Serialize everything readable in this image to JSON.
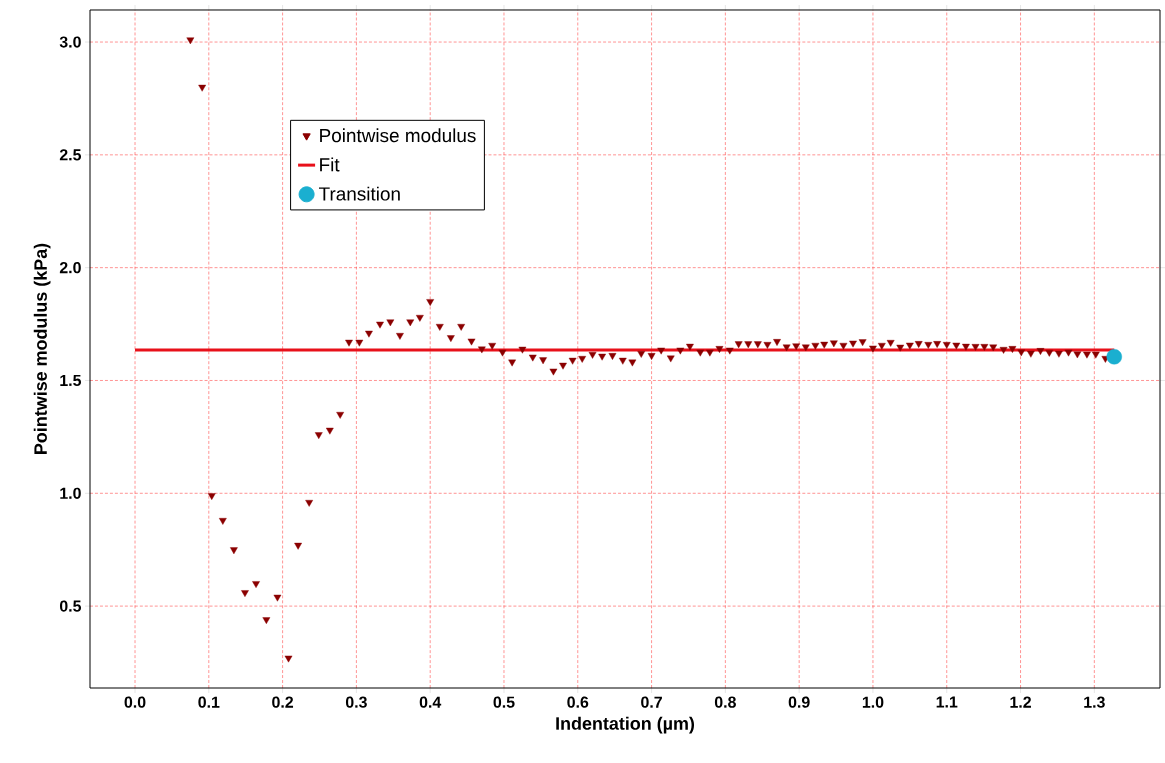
{
  "chart_data": {
    "type": "scatter",
    "xlabel": "Indentation (µm)",
    "ylabel": "Pointwise modulus (kPa)",
    "xlim": [
      -0.061,
      1.389
    ],
    "ylim": [
      0.137,
      3.142
    ],
    "xticks": [
      {
        "value": 0.0,
        "label": "0.0"
      },
      0.1,
      0.2,
      0.3,
      0.4,
      0.5,
      0.6,
      0.7,
      0.8,
      0.9,
      {
        "value": 1.0,
        "label": "1.0"
      },
      1.1,
      1.2,
      1.3
    ],
    "yticks": [
      0.5,
      {
        "value": 1.0,
        "label": "1.0"
      },
      1.5,
      {
        "value": 2.0,
        "label": "2.0"
      },
      2.5,
      {
        "value": 3.0,
        "label": "3.0"
      }
    ],
    "grid": true,
    "legend": "top left",
    "series": [
      {
        "name": "Pointwise modulus",
        "marker": "triangle",
        "color": "#8b0000",
        "x": [
          0.075,
          0.091,
          0.104,
          0.119,
          0.134,
          0.149,
          0.164,
          0.178,
          0.193,
          0.208,
          0.221,
          0.236,
          0.249,
          0.264,
          0.278,
          0.29,
          0.304,
          0.317,
          0.332,
          0.346,
          0.359,
          0.373,
          0.386,
          0.4,
          0.413,
          0.428,
          0.442,
          0.456,
          0.47,
          0.484,
          0.498,
          0.511,
          0.525,
          0.539,
          0.553,
          0.567,
          0.58,
          0.593,
          0.606,
          0.62,
          0.633,
          0.647,
          0.661,
          0.674,
          0.686,
          0.7,
          0.713,
          0.726,
          0.739,
          0.752,
          0.766,
          0.779,
          0.792,
          0.806,
          0.818,
          0.831,
          0.844,
          0.857,
          0.87,
          0.883,
          0.896,
          0.909,
          0.922,
          0.934,
          0.947,
          0.96,
          0.973,
          0.986,
          1.0,
          1.012,
          1.024,
          1.037,
          1.05,
          1.062,
          1.075,
          1.087,
          1.1,
          1.113,
          1.126,
          1.139,
          1.151,
          1.163,
          1.177,
          1.189,
          1.201,
          1.214,
          1.227,
          1.239,
          1.252,
          1.265,
          1.277,
          1.29,
          1.302,
          1.315
        ],
        "values": [
          3.01,
          2.8,
          0.99,
          0.88,
          0.75,
          0.56,
          0.6,
          0.44,
          0.54,
          0.27,
          0.77,
          0.96,
          1.26,
          1.28,
          1.35,
          1.67,
          1.67,
          1.71,
          1.75,
          1.76,
          1.7,
          1.76,
          1.78,
          1.85,
          1.74,
          1.69,
          1.74,
          1.675,
          1.64,
          1.656,
          1.626,
          1.582,
          1.639,
          1.604,
          1.592,
          1.542,
          1.568,
          1.59,
          1.598,
          1.616,
          1.608,
          1.611,
          1.59,
          1.582,
          1.62,
          1.611,
          1.635,
          1.6,
          1.635,
          1.652,
          1.626,
          1.626,
          1.642,
          1.635,
          1.663,
          1.663,
          1.663,
          1.66,
          1.673,
          1.649,
          1.654,
          1.649,
          1.656,
          1.661,
          1.667,
          1.656,
          1.666,
          1.672,
          1.644,
          1.656,
          1.669,
          1.648,
          1.657,
          1.664,
          1.66,
          1.664,
          1.66,
          1.657,
          1.652,
          1.651,
          1.651,
          1.649,
          1.638,
          1.642,
          1.627,
          1.621,
          1.633,
          1.625,
          1.621,
          1.626,
          1.618,
          1.617,
          1.617,
          1.598
        ]
      },
      {
        "name": "Fit",
        "type": "line",
        "marker": "none",
        "color": "#e8101a",
        "x": [
          0.0,
          1.327
        ],
        "values": [
          1.635,
          1.635
        ]
      },
      {
        "name": "Transition",
        "marker": "circle",
        "color": "#1aafd0",
        "x": [
          1.327
        ],
        "values": [
          1.605
        ]
      }
    ]
  }
}
